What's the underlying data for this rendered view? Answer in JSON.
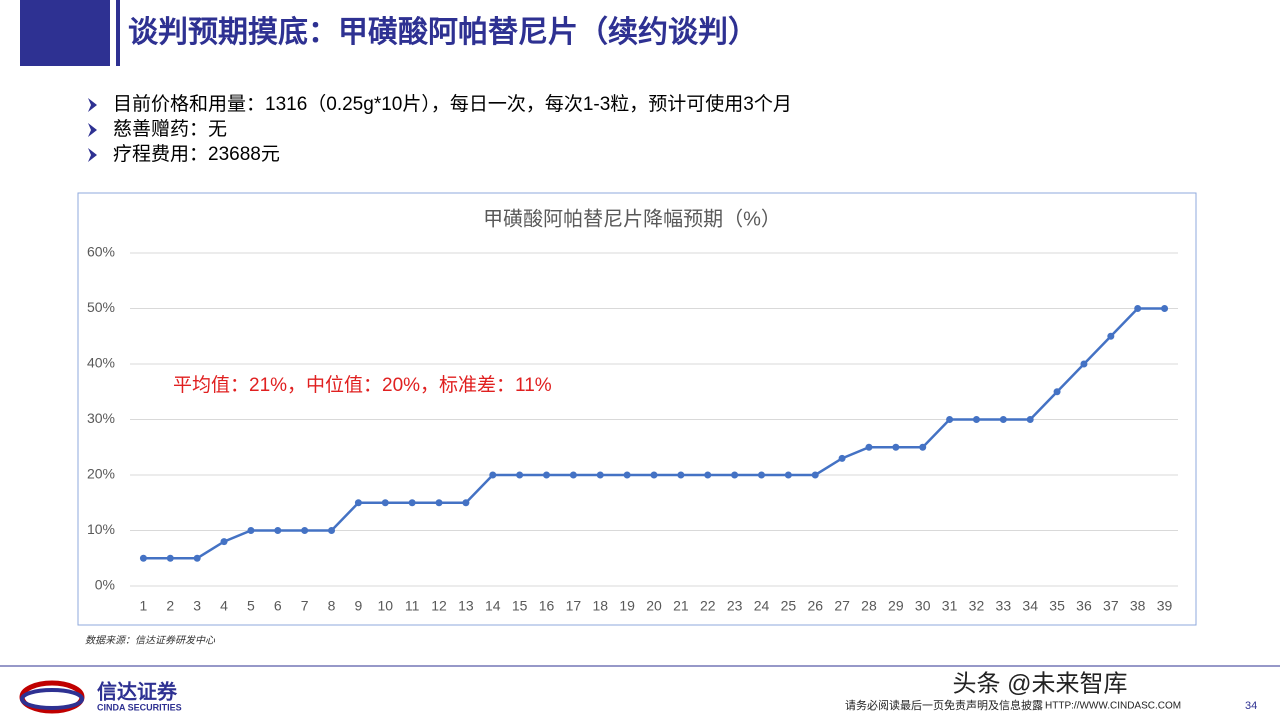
{
  "header": {
    "title": "谈判预期摸底：甲磺酸阿帕替尼片（续约谈判）"
  },
  "bullets": [
    "目前价格和用量：1316（0.25g*10片），每日一次，每次1-3粒，预计可使用3个月",
    "慈善赠药：无",
    "疗程费用：23688元"
  ],
  "chart_data": {
    "type": "line",
    "title": "甲磺酸阿帕替尼片降幅预期（%）",
    "categories": [
      "1",
      "2",
      "3",
      "4",
      "5",
      "6",
      "7",
      "8",
      "9",
      "10",
      "11",
      "12",
      "13",
      "14",
      "15",
      "16",
      "17",
      "18",
      "19",
      "20",
      "21",
      "22",
      "23",
      "24",
      "25",
      "26",
      "27",
      "28",
      "29",
      "30",
      "31",
      "32",
      "33",
      "34",
      "35",
      "36",
      "37",
      "38",
      "39"
    ],
    "values": [
      5,
      5,
      5,
      8,
      10,
      10,
      10,
      10,
      15,
      15,
      15,
      15,
      15,
      20,
      20,
      20,
      20,
      20,
      20,
      20,
      20,
      20,
      20,
      20,
      20,
      20,
      23,
      25,
      25,
      25,
      30,
      30,
      30,
      30,
      35,
      40,
      45,
      50,
      50
    ],
    "color": "#4472c4",
    "ylim": [
      0,
      60
    ],
    "yticks": [
      {
        "value": 0,
        "label": "0%"
      },
      {
        "value": 10,
        "label": "10%"
      },
      {
        "value": 20,
        "label": "20%"
      },
      {
        "value": 30,
        "label": "30%"
      },
      {
        "value": 40,
        "label": "40%"
      },
      {
        "value": 50,
        "label": "50%"
      },
      {
        "value": 60,
        "label": "60%"
      }
    ],
    "grid": true,
    "annotation": "平均值：21%，中位值：20%，标准差：11%"
  },
  "source": "数据来源：信达证券研发中心",
  "footer": {
    "logo_cn": "信达证券",
    "logo_en": "CINDA SECURITIES",
    "disclaimer": "请务必阅读最后一页免责声明及信息披露",
    "url": "HTTP://WWW.CINDASC.COM",
    "page": "34",
    "watermark": "头条 @未来智库"
  }
}
